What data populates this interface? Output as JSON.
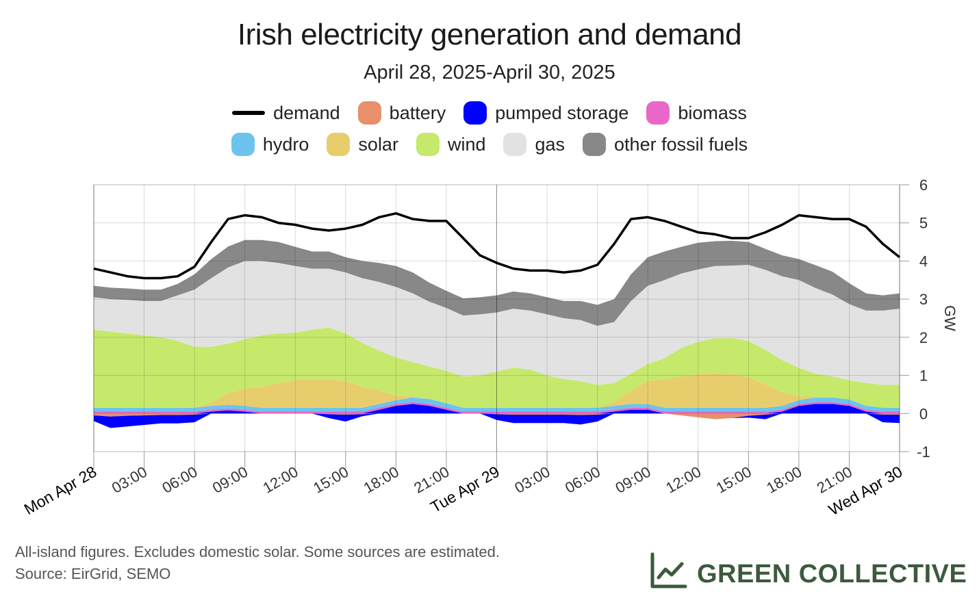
{
  "header": {
    "title": "Irish electricity generation and demand",
    "subtitle": "April 28, 2025-April 30, 2025"
  },
  "legend": [
    {
      "label": "demand",
      "color": "#000000",
      "kind": "line"
    },
    {
      "label": "battery",
      "color": "#E8906A",
      "kind": "area"
    },
    {
      "label": "pumped storage",
      "color": "#0000FF",
      "kind": "area"
    },
    {
      "label": "biomass",
      "color": "#E867C8",
      "kind": "area"
    },
    {
      "label": "hydro",
      "color": "#6CC4EE",
      "kind": "area"
    },
    {
      "label": "solar",
      "color": "#E8CD6C",
      "kind": "area"
    },
    {
      "label": "wind",
      "color": "#C6E96C",
      "kind": "area"
    },
    {
      "label": "gas",
      "color": "#E2E2E2",
      "kind": "area"
    },
    {
      "label": "other fossil fuels",
      "color": "#888888",
      "kind": "area"
    }
  ],
  "footer": {
    "note1": "All-island figures. Excludes domestic solar. Some sources are estimated.",
    "note2": "Source: EirGrid, SEMO",
    "brand": "GREEN COLLECTIVE",
    "brand_icon": "line-chart-icon"
  },
  "chart_data": {
    "type": "area",
    "stacked": true,
    "ylabel": "GW",
    "ylim": [
      -1,
      6
    ],
    "yticks": [
      "-1",
      "0",
      "1",
      "2",
      "3",
      "4",
      "5",
      "6"
    ],
    "xlim": [
      0,
      48
    ],
    "x_unit": "hours from Mon Apr 28 00:00",
    "grid": true,
    "xticks": [
      {
        "x": 0,
        "label": "Mon Apr 28",
        "major": true
      },
      {
        "x": 3,
        "label": "03:00",
        "major": false
      },
      {
        "x": 6,
        "label": "06:00",
        "major": false
      },
      {
        "x": 9,
        "label": "09:00",
        "major": false
      },
      {
        "x": 12,
        "label": "12:00",
        "major": false
      },
      {
        "x": 15,
        "label": "15:00",
        "major": false
      },
      {
        "x": 18,
        "label": "18:00",
        "major": false
      },
      {
        "x": 21,
        "label": "21:00",
        "major": false
      },
      {
        "x": 24,
        "label": "Tue Apr 29",
        "major": true
      },
      {
        "x": 27,
        "label": "03:00",
        "major": false
      },
      {
        "x": 30,
        "label": "06:00",
        "major": false
      },
      {
        "x": 33,
        "label": "09:00",
        "major": false
      },
      {
        "x": 36,
        "label": "12:00",
        "major": false
      },
      {
        "x": 39,
        "label": "15:00",
        "major": false
      },
      {
        "x": 42,
        "label": "18:00",
        "major": false
      },
      {
        "x": 45,
        "label": "21:00",
        "major": false
      },
      {
        "x": 48,
        "label": "Wed Apr 30",
        "major": true
      }
    ],
    "x": [
      0,
      1,
      2,
      3,
      4,
      5,
      6,
      7,
      8,
      9,
      10,
      11,
      12,
      13,
      14,
      15,
      16,
      17,
      18,
      19,
      20,
      21,
      22,
      23,
      24,
      25,
      26,
      27,
      28,
      29,
      30,
      31,
      32,
      33,
      34,
      35,
      36,
      37,
      38,
      39,
      40,
      41,
      42,
      43,
      44,
      45,
      46,
      47,
      48
    ],
    "pumped_storage_discharge": [
      0,
      0,
      0,
      0,
      0,
      0,
      0,
      0.05,
      0.08,
      0.05,
      0,
      0,
      0,
      0,
      0,
      0,
      0,
      0.1,
      0.2,
      0.25,
      0.2,
      0.1,
      0,
      0,
      0,
      0,
      0,
      0,
      0,
      0,
      0,
      0.05,
      0.1,
      0.1,
      0,
      0,
      0,
      0,
      0,
      0,
      0,
      0.05,
      0.2,
      0.25,
      0.25,
      0.2,
      0.05,
      0,
      0
    ],
    "pumped_storage_charge": [
      -0.15,
      -0.3,
      -0.28,
      -0.25,
      -0.22,
      -0.22,
      -0.2,
      0,
      0,
      0,
      0,
      0,
      0,
      0,
      -0.1,
      -0.18,
      -0.05,
      0,
      0,
      0,
      0,
      0,
      0,
      0,
      -0.15,
      -0.22,
      -0.22,
      -0.22,
      -0.22,
      -0.25,
      -0.18,
      0,
      0,
      0,
      0,
      0,
      0,
      0,
      0,
      -0.05,
      -0.12,
      0,
      0,
      0,
      0,
      0,
      0,
      -0.2,
      -0.22
    ],
    "battery_discharge": [
      0,
      0,
      0,
      0,
      0,
      0,
      0,
      0,
      0,
      0,
      0,
      0,
      0,
      0,
      0,
      0,
      0,
      0,
      0,
      0,
      0,
      0,
      0,
      0,
      0,
      0,
      0,
      0,
      0,
      0,
      0,
      0,
      0,
      0,
      0,
      0,
      0,
      0,
      0,
      0,
      0,
      0,
      0,
      0,
      0,
      0,
      0,
      0,
      0
    ],
    "battery_charge": [
      -0.05,
      -0.08,
      -0.06,
      -0.05,
      -0.04,
      -0.04,
      -0.03,
      0,
      0,
      0,
      0,
      0,
      0,
      0,
      -0.02,
      -0.03,
      -0.02,
      0,
      0,
      0,
      0,
      0,
      0,
      0,
      -0.02,
      -0.03,
      -0.03,
      -0.03,
      -0.03,
      -0.04,
      -0.03,
      0,
      0,
      0,
      0,
      -0.05,
      -0.1,
      -0.15,
      -0.12,
      -0.06,
      -0.03,
      0,
      0,
      0,
      0,
      0,
      0,
      -0.03,
      -0.03
    ],
    "series": [
      {
        "name": "biomass",
        "values": [
          0.05,
          0.05,
          0.05,
          0.05,
          0.05,
          0.05,
          0.05,
          0.05,
          0.05,
          0.05,
          0.05,
          0.05,
          0.05,
          0.05,
          0.05,
          0.05,
          0.05,
          0.05,
          0.05,
          0.05,
          0.05,
          0.05,
          0.05,
          0.05,
          0.05,
          0.05,
          0.05,
          0.05,
          0.05,
          0.05,
          0.05,
          0.05,
          0.05,
          0.05,
          0.05,
          0.05,
          0.05,
          0.05,
          0.05,
          0.05,
          0.05,
          0.05,
          0.05,
          0.05,
          0.05,
          0.05,
          0.05,
          0.05,
          0.05
        ]
      },
      {
        "name": "hydro",
        "values": [
          0.1,
          0.1,
          0.1,
          0.1,
          0.1,
          0.1,
          0.1,
          0.1,
          0.1,
          0.1,
          0.1,
          0.1,
          0.1,
          0.1,
          0.1,
          0.1,
          0.1,
          0.1,
          0.1,
          0.12,
          0.13,
          0.12,
          0.1,
          0.1,
          0.1,
          0.1,
          0.1,
          0.1,
          0.1,
          0.1,
          0.1,
          0.1,
          0.1,
          0.1,
          0.1,
          0.1,
          0.1,
          0.1,
          0.1,
          0.1,
          0.1,
          0.1,
          0.1,
          0.12,
          0.12,
          0.12,
          0.1,
          0.1,
          0.1
        ]
      },
      {
        "name": "solar",
        "values": [
          0,
          0,
          0,
          0,
          0,
          0,
          0,
          0.1,
          0.3,
          0.45,
          0.55,
          0.65,
          0.72,
          0.75,
          0.75,
          0.7,
          0.55,
          0.35,
          0.12,
          0.03,
          0,
          0,
          0,
          0,
          0,
          0,
          0,
          0,
          0,
          0,
          0,
          0.1,
          0.35,
          0.6,
          0.75,
          0.82,
          0.88,
          0.9,
          0.88,
          0.8,
          0.62,
          0.35,
          0.1,
          0.02,
          0,
          0,
          0,
          0,
          0
        ]
      },
      {
        "name": "wind",
        "values": [
          2.05,
          2.0,
          1.95,
          1.9,
          1.85,
          1.75,
          1.6,
          1.45,
          1.3,
          1.3,
          1.35,
          1.3,
          1.25,
          1.3,
          1.35,
          1.25,
          1.15,
          1.05,
          1.0,
          0.9,
          0.85,
          0.85,
          0.82,
          0.85,
          0.95,
          1.05,
          1.0,
          0.85,
          0.75,
          0.7,
          0.6,
          0.5,
          0.45,
          0.45,
          0.55,
          0.75,
          0.85,
          0.92,
          0.95,
          0.95,
          0.9,
          0.85,
          0.75,
          0.6,
          0.55,
          0.5,
          0.6,
          0.6,
          0.6
        ]
      },
      {
        "name": "gas",
        "values": [
          0.85,
          0.85,
          0.88,
          0.9,
          0.95,
          1.2,
          1.5,
          1.8,
          2.0,
          2.05,
          1.95,
          1.85,
          1.75,
          1.6,
          1.55,
          1.6,
          1.7,
          1.8,
          1.85,
          1.8,
          1.7,
          1.65,
          1.6,
          1.6,
          1.55,
          1.55,
          1.55,
          1.6,
          1.6,
          1.6,
          1.55,
          1.6,
          1.9,
          2.05,
          2.05,
          1.95,
          1.9,
          1.9,
          1.9,
          2.0,
          2.1,
          2.2,
          2.3,
          2.25,
          2.15,
          2.0,
          1.9,
          1.95,
          2.0
        ]
      },
      {
        "name": "other fossil fuels",
        "values": [
          0.3,
          0.3,
          0.3,
          0.3,
          0.3,
          0.3,
          0.4,
          0.5,
          0.55,
          0.55,
          0.55,
          0.55,
          0.5,
          0.45,
          0.45,
          0.4,
          0.45,
          0.5,
          0.55,
          0.55,
          0.5,
          0.45,
          0.45,
          0.45,
          0.45,
          0.45,
          0.45,
          0.45,
          0.45,
          0.5,
          0.55,
          0.6,
          0.7,
          0.75,
          0.75,
          0.7,
          0.7,
          0.65,
          0.65,
          0.6,
          0.55,
          0.55,
          0.55,
          0.6,
          0.6,
          0.55,
          0.45,
          0.4,
          0.4
        ]
      }
    ],
    "demand": [
      3.8,
      3.7,
      3.6,
      3.55,
      3.55,
      3.6,
      3.85,
      4.5,
      5.1,
      5.2,
      5.15,
      5.0,
      4.95,
      4.85,
      4.8,
      4.85,
      4.95,
      5.15,
      5.25,
      5.1,
      5.05,
      5.05,
      4.6,
      4.15,
      3.95,
      3.8,
      3.75,
      3.75,
      3.7,
      3.75,
      3.9,
      4.45,
      5.1,
      5.15,
      5.05,
      4.9,
      4.75,
      4.7,
      4.6,
      4.6,
      4.75,
      4.95,
      5.2,
      5.15,
      5.1,
      5.1,
      4.9,
      4.45,
      4.1
    ]
  }
}
